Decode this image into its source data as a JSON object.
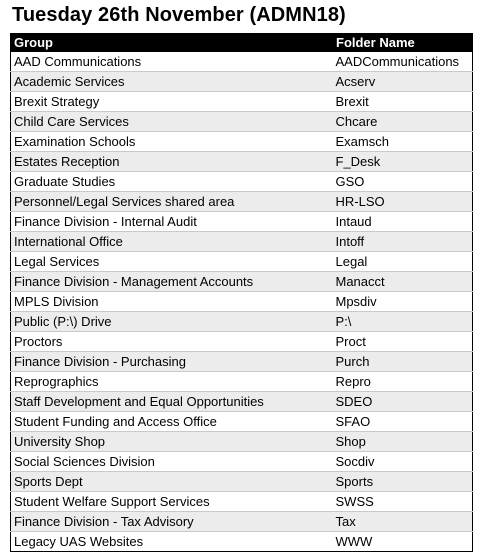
{
  "title": "Tuesday 26th November (ADMN18)",
  "table": {
    "headers": {
      "group": "Group",
      "folder": "Folder Name"
    },
    "rows": [
      {
        "group": "AAD Communications",
        "folder": "AADCommunications"
      },
      {
        "group": "Academic Services",
        "folder": "Acserv"
      },
      {
        "group": "Brexit Strategy",
        "folder": "Brexit"
      },
      {
        "group": "Child Care Services",
        "folder": "Chcare"
      },
      {
        "group": "Examination Schools",
        "folder": "Examsch"
      },
      {
        "group": "Estates Reception",
        "folder": "F_Desk"
      },
      {
        "group": "Graduate Studies",
        "folder": "GSO"
      },
      {
        "group": "Personnel/Legal Services shared area",
        "folder": "HR-LSO"
      },
      {
        "group": "Finance Division - Internal Audit",
        "folder": "Intaud"
      },
      {
        "group": "International Office",
        "folder": "Intoff"
      },
      {
        "group": "Legal Services",
        "folder": "Legal"
      },
      {
        "group": "Finance Division - Management Accounts",
        "folder": "Manacct"
      },
      {
        "group": "MPLS Division",
        "folder": "Mpsdiv"
      },
      {
        "group": "Public (P:\\) Drive",
        "folder": "P:\\"
      },
      {
        "group": "Proctors",
        "folder": "Proct"
      },
      {
        "group": "Finance Division - Purchasing",
        "folder": "Purch"
      },
      {
        "group": "Reprographics",
        "folder": "Repro"
      },
      {
        "group": "Staff Development and Equal Opportunities",
        "folder": "SDEO"
      },
      {
        "group": "Student Funding and Access Office",
        "folder": "SFAO"
      },
      {
        "group": "University Shop",
        "folder": "Shop"
      },
      {
        "group": "Social Sciences Division",
        "folder": "Socdiv"
      },
      {
        "group": "Sports Dept",
        "folder": "Sports"
      },
      {
        "group": "Student Welfare Support Services",
        "folder": "SWSS"
      },
      {
        "group": "Finance Division - Tax Advisory",
        "folder": "Tax"
      },
      {
        "group": "Legacy UAS Websites",
        "folder": "WWW"
      }
    ]
  }
}
